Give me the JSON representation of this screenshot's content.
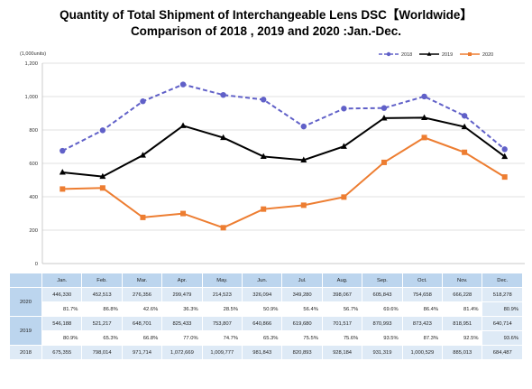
{
  "title_line1": "Quantity of Total Shipment of Interchangeable Lens DSC【Worldwide】",
  "title_line2": "Comparison of 2018 , 2019 and 2020 :Jan.-Dec.",
  "chart_data": {
    "type": "line",
    "unit_label": "(1,000units)",
    "categories": [
      "Jan.",
      "Feb.",
      "Mar.",
      "Apr.",
      "May.",
      "Jun.",
      "Jul.",
      "Aug.",
      "Sep.",
      "Oct.",
      "Nov.",
      "Dec."
    ],
    "ylim": [
      0,
      1200
    ],
    "yticks": [
      0,
      200,
      400,
      600,
      800,
      1000,
      1200
    ],
    "ytick_labels": [
      "0",
      "200",
      "400",
      "600",
      "800",
      "1,000",
      "1,200"
    ],
    "grid": true,
    "legend_position": "top-right",
    "series": [
      {
        "name": "2018",
        "color": "#6060c8",
        "style": "dashed",
        "marker": "circle",
        "values": [
          675.355,
          798.014,
          971.714,
          1072.669,
          1009.777,
          981.843,
          820.893,
          928.184,
          931.319,
          1000.529,
          885.013,
          684.487
        ]
      },
      {
        "name": "2019",
        "color": "#000000",
        "style": "solid",
        "marker": "triangle",
        "values": [
          546.188,
          521.217,
          648.701,
          825.433,
          753.807,
          640.866,
          619.68,
          701.517,
          870.993,
          873.423,
          818.951,
          640.714
        ]
      },
      {
        "name": "2020",
        "color": "#ed7d31",
        "style": "solid",
        "marker": "square",
        "values": [
          446.33,
          452.513,
          276.356,
          299.479,
          214.523,
          326.094,
          349.28,
          398.067,
          605.843,
          754.658,
          666.228,
          518.278
        ]
      }
    ]
  },
  "table": {
    "rows": [
      {
        "year": "2020",
        "values": [
          "446,330",
          "452,513",
          "276,356",
          "299,479",
          "214,523",
          "326,094",
          "349,280",
          "398,067",
          "605,843",
          "754,658",
          "666,228",
          "518,278"
        ],
        "percents": [
          "81.7%",
          "86.8%",
          "42.6%",
          "36.3%",
          "28.5%",
          "50.9%",
          "56.4%",
          "56.7%",
          "69.6%",
          "86.4%",
          "81.4%",
          "80.9%"
        ]
      },
      {
        "year": "2019",
        "values": [
          "546,188",
          "521,217",
          "648,701",
          "825,433",
          "753,807",
          "640,866",
          "619,680",
          "701,517",
          "870,993",
          "873,423",
          "818,951",
          "640,714"
        ],
        "percents": [
          "80.9%",
          "65.3%",
          "66.8%",
          "77.0%",
          "74.7%",
          "65.3%",
          "75.5%",
          "75.6%",
          "93.5%",
          "87.3%",
          "92.5%",
          "93.6%"
        ]
      },
      {
        "year": "2018",
        "values": [
          "675,355",
          "798,014",
          "971,714",
          "1,072,669",
          "1,009,777",
          "981,843",
          "820,893",
          "928,184",
          "931,319",
          "1,000,529",
          "885,013",
          "684,487"
        ],
        "percents": []
      }
    ]
  }
}
